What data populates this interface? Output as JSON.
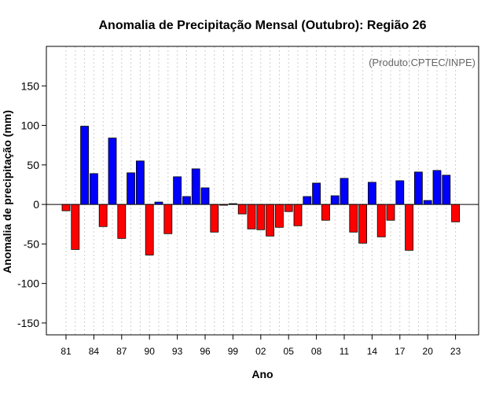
{
  "chart_data": {
    "type": "bar",
    "title": "Anomalia de Precipitação Mensal (Outubro): Região 26",
    "xlabel": "Ano",
    "ylabel": "Anomalia de precipitação (mm)",
    "credit": "(Produto:CPTEC/INPE)",
    "ylim": [
      -165,
      200
    ],
    "yticks": [
      -150,
      -100,
      -50,
      0,
      50,
      100,
      150
    ],
    "ytick_labels": [
      "-150",
      "-100",
      "-50",
      "0",
      "50",
      "100",
      "150"
    ],
    "xtick_labels": [
      "81",
      "84",
      "87",
      "90",
      "93",
      "96",
      "99",
      "02",
      "05",
      "08",
      "11",
      "14",
      "17",
      "20",
      "23"
    ],
    "years": [
      1981,
      1982,
      1983,
      1984,
      1985,
      1986,
      1987,
      1988,
      1989,
      1990,
      1991,
      1992,
      1993,
      1994,
      1995,
      1996,
      1997,
      1998,
      1999,
      2000,
      2001,
      2002,
      2003,
      2004,
      2005,
      2006,
      2007,
      2008,
      2009,
      2010,
      2011,
      2012,
      2013,
      2014,
      2015,
      2016,
      2017,
      2018,
      2019,
      2020,
      2021,
      2022,
      2023
    ],
    "values": [
      -8,
      -57,
      99,
      39,
      -28,
      84,
      -43,
      40,
      55,
      -64,
      3,
      -37,
      35,
      10,
      45,
      21,
      -35,
      -1,
      1,
      -12,
      -31,
      -32,
      -40,
      -29,
      -9,
      -27,
      10,
      27,
      -20,
      11,
      33,
      -35,
      -49,
      28,
      -41,
      -20,
      30,
      -58,
      41,
      5,
      43,
      37,
      -22
    ],
    "colors": {
      "positive": "#0000ff",
      "negative": "#ff0000",
      "grid": "#cccccc",
      "axis": "#000000",
      "credit": "#666666"
    }
  }
}
